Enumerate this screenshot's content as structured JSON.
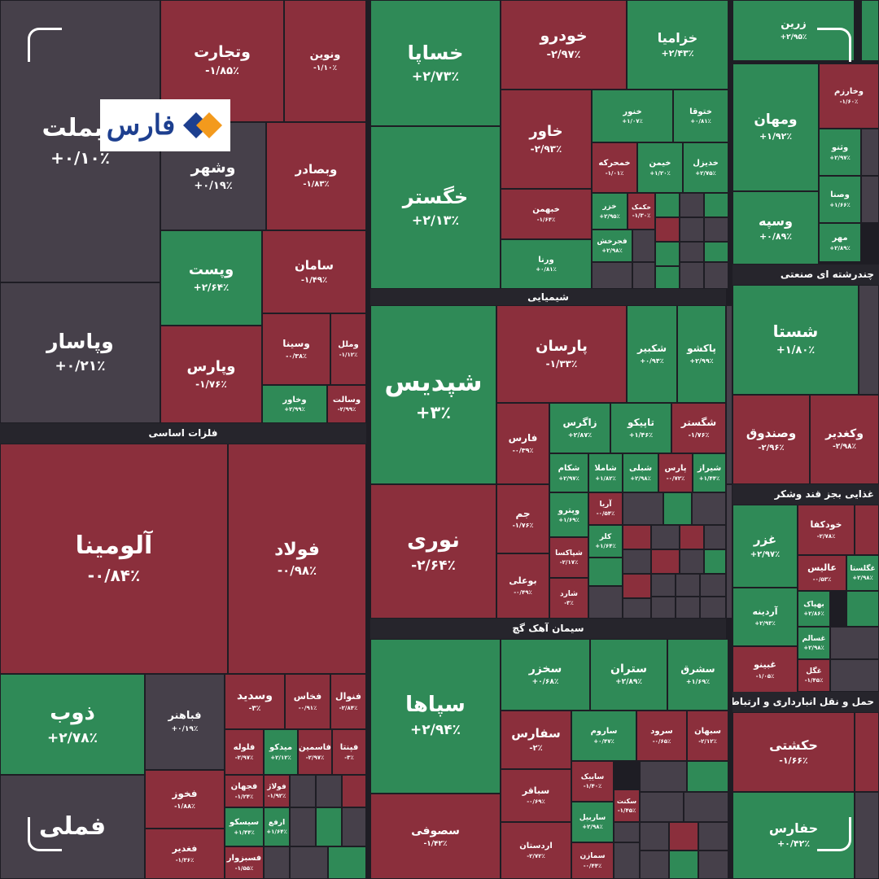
{
  "watermark": {
    "brand": "فارس"
  },
  "colors": {
    "positive": "#2f8a57",
    "negative": "#8b2f3c",
    "neutral": "#46404a",
    "background": "#1e1d24",
    "logo_orange": "#f39a1d",
    "logo_blue": "#1d3f8f"
  },
  "chart_data": {
    "type": "treemap",
    "value_meaning": "daily price change (%)",
    "sectors": [
      {
        "name": "فلزات اساسی",
        "tiles": [
          {
            "name": "وبملت",
            "change": 0.1,
            "label": "+۰/۱۰٪"
          },
          {
            "name": "وتجارت",
            "change": -1.85,
            "label": "-۱/۸۵٪"
          },
          {
            "name": "ونوین",
            "change": -1.1,
            "label": "-۱/۱۰٪"
          },
          {
            "name": "وشهر",
            "change": 0.19,
            "label": "+۰/۱۹٪"
          },
          {
            "name": "وبصادر",
            "change": -1.83,
            "label": "-۱/۸۳٪"
          },
          {
            "name": "وپست",
            "change": 2.64,
            "label": "+۲/۶۴٪"
          },
          {
            "name": "سامان",
            "change": -1.49,
            "label": "-۱/۴۹٪"
          },
          {
            "name": "وپاسار",
            "change": 0.21,
            "label": "+۰/۲۱٪"
          },
          {
            "name": "وپارس",
            "change": -1.76,
            "label": "-۱/۷۶٪"
          },
          {
            "name": "وسینا",
            "change": -0.38,
            "label": "-۰/۳۸٪"
          },
          {
            "name": "وملل",
            "change": -1.12,
            "label": "-۱/۱۲٪"
          },
          {
            "name": "وخاور",
            "change": 2.99,
            "label": "+۲/۹۹٪"
          },
          {
            "name": "وسالت",
            "change": -2.99,
            "label": "-۲/۹۹٪"
          }
        ]
      },
      {
        "name": "",
        "tiles": [
          {
            "name": "آلومینا",
            "change": -0.84,
            "label": "-۰/۸۴٪"
          },
          {
            "name": "فولاد",
            "change": -0.98,
            "label": "-۰/۹۸٪"
          },
          {
            "name": "ذوب",
            "change": 2.78,
            "label": "+۲/۷۸٪"
          },
          {
            "name": "فباهنر",
            "change": 0.19,
            "label": "+۰/۱۹٪"
          },
          {
            "name": "وسدید",
            "change": -3.0,
            "label": "-۳٪"
          },
          {
            "name": "فخاس",
            "change": -0.91,
            "label": "-۰/۹۱٪"
          },
          {
            "name": "فنوال",
            "change": -2.84,
            "label": "-۲/۸۴٪"
          },
          {
            "name": "فلوله",
            "change": -2.97,
            "label": "-۲/۹۷٪"
          },
          {
            "name": "میدکو",
            "change": 2.12,
            "label": "+۲/۱۲٪"
          },
          {
            "name": "فاسمین",
            "change": -2.97,
            "label": "-۲/۹۷٪"
          },
          {
            "name": "فپنتا",
            "change": -3.0,
            "label": "-۳٪"
          },
          {
            "name": "فخوز",
            "change": -1.88,
            "label": "-۱/۸۸٪"
          },
          {
            "name": "فجهان",
            "change": -1.24,
            "label": "-۱/۲۴٪"
          },
          {
            "name": "فولاژ",
            "change": -1.92,
            "label": "-۱/۹۲٪"
          },
          {
            "name": "سیسکو",
            "change": 1.44,
            "label": "+۱/۴۴٪"
          },
          {
            "name": "ارفع",
            "change": 1.64,
            "label": "+۱/۶۴٪"
          },
          {
            "name": "فملی",
            "change": 0,
            "label": ""
          },
          {
            "name": "فغدیر",
            "change": -1.36,
            "label": "-۱/۳۶٪"
          },
          {
            "name": "فسبزوار",
            "change": -1.55,
            "label": "-۱/۵۵٪"
          }
        ]
      },
      {
        "name": "شیمیایی",
        "tiles": [
          {
            "name": "خساپا",
            "change": 2.73,
            "label": "+۲/۷۳٪"
          },
          {
            "name": "خگستر",
            "change": 2.13,
            "label": "+۲/۱۳٪"
          },
          {
            "name": "خودرو",
            "change": -2.97,
            "label": "-۲/۹۷٪"
          },
          {
            "name": "خزامیا",
            "change": 2.43,
            "label": "+۲/۴۳٪"
          },
          {
            "name": "خاور",
            "change": -2.93,
            "label": "-۲/۹۳٪"
          },
          {
            "name": "خنور",
            "change": 1.07,
            "label": "+۱/۰۷٪"
          },
          {
            "name": "ختوقا",
            "change": 0.81,
            "label": "+۰/۸۱٪"
          },
          {
            "name": "خمحرکه",
            "change": -1.01,
            "label": "-۱/۰۱٪"
          },
          {
            "name": "خیمن",
            "change": 1.2,
            "label": "+۱/۲۰٪"
          },
          {
            "name": "خدیزل",
            "change": 2.75,
            "label": "+۲/۷۵٪"
          },
          {
            "name": "خبهمن",
            "change": -1.64,
            "label": "-۱/۶۴٪"
          },
          {
            "name": "خزر",
            "change": 2.95,
            "label": "+۲/۹۵٪"
          },
          {
            "name": "خکمک",
            "change": -1.3,
            "label": "-۱/۳۰٪"
          },
          {
            "name": "فجرخش",
            "change": 2.98,
            "label": "+۲/۹۸٪"
          },
          {
            "name": "ورنا",
            "change": 0.81,
            "label": "+۰/۸۱٪"
          }
        ]
      },
      {
        "name": "سیمان آهک گچ",
        "tiles": [
          {
            "name": "شپدیس",
            "change": 3.0,
            "label": "+۳٪"
          },
          {
            "name": "پارسان",
            "change": -1.33,
            "label": "-۱/۳۳٪"
          },
          {
            "name": "شکبیر",
            "change": 0.94,
            "label": "+۰/۹۴٪"
          },
          {
            "name": "پاکشو",
            "change": 2.99,
            "label": "+۲/۹۹٪"
          },
          {
            "name": "فارس",
            "change": -0.39,
            "label": "-۰/۳۹٪"
          },
          {
            "name": "زاگرس",
            "change": 2.87,
            "label": "+۲/۸۷٪"
          },
          {
            "name": "تاپیکو",
            "change": 1.46,
            "label": "+۱/۴۶٪"
          },
          {
            "name": "شگستر",
            "change": -1.76,
            "label": "-۱/۷۶٪"
          },
          {
            "name": "شکام",
            "change": 2.97,
            "label": "+۲/۹۷٪"
          },
          {
            "name": "شاملا",
            "change": 1.82,
            "label": "+۱/۸۲٪"
          },
          {
            "name": "شبلی",
            "change": 2.98,
            "label": "+۲/۹۸٪"
          },
          {
            "name": "پارس",
            "change": -0.72,
            "label": "-۰/۷۲٪"
          },
          {
            "name": "شیراز",
            "change": 1.44,
            "label": "+۱/۴۴٪"
          },
          {
            "name": "جم",
            "change": -1.76,
            "label": "-۱/۷۶٪"
          },
          {
            "name": "نوری",
            "change": -2.64,
            "label": "-۲/۶۴٪"
          },
          {
            "name": "وپترو",
            "change": 1.69,
            "label": "+۱/۶۹٪"
          },
          {
            "name": "آریا",
            "change": -0.54,
            "label": "-۰/۵۴٪"
          },
          {
            "name": "کلر",
            "change": 1.64,
            "label": "+۱/۶۴٪"
          },
          {
            "name": "شپاکسا",
            "change": -2.17,
            "label": "-۲/۱۷٪"
          },
          {
            "name": "بوعلی",
            "change": -0.49,
            "label": "-۰/۴۹٪"
          },
          {
            "name": "شارد",
            "change": -3.0,
            "label": "-۳٪"
          }
        ]
      },
      {
        "name": "",
        "tiles": [
          {
            "name": "سپاها",
            "change": 2.94,
            "label": "+۲/۹۴٪"
          },
          {
            "name": "سخزر",
            "change": 0.68,
            "label": "+۰/۶۸٪"
          },
          {
            "name": "ستران",
            "change": 2.89,
            "label": "+۲/۸۹٪"
          },
          {
            "name": "سشرق",
            "change": 1.69,
            "label": "+۱/۶۹٪"
          },
          {
            "name": "سفارس",
            "change": -2.0,
            "label": "-۲٪"
          },
          {
            "name": "ساروم",
            "change": 0.47,
            "label": "+۰/۴۷٪"
          },
          {
            "name": "سرود",
            "change": -0.65,
            "label": "-۰/۶۵٪"
          },
          {
            "name": "سبهان",
            "change": -2.12,
            "label": "-۲/۱۲٪"
          },
          {
            "name": "ساییک",
            "change": -1.4,
            "label": "-۱/۴۰٪"
          },
          {
            "name": "سباقر",
            "change": -0.69,
            "label": "-۰/۶۹٪"
          },
          {
            "name": "سکنت",
            "change": -1.45,
            "label": "-۱/۴۵٪"
          },
          {
            "name": "ساربیل",
            "change": 2.98,
            "label": "+۲/۹۸٪"
          },
          {
            "name": "سصوفی",
            "change": -1.42,
            "label": "-۱/۴۲٪"
          },
          {
            "name": "اردستان",
            "change": -2.72,
            "label": "-۲/۷۲٪"
          },
          {
            "name": "سمازن",
            "change": -0.44,
            "label": "-۰/۴۴٪"
          }
        ]
      },
      {
        "name": "چندرشته ای صنعتی",
        "tiles": [
          {
            "name": "زرین",
            "change": 2.95,
            "label": "+۲/۹۵٪"
          },
          {
            "name": "ومهان",
            "change": 1.92,
            "label": "+۱/۹۲٪"
          },
          {
            "name": "وخارزم",
            "change": -1.6,
            "label": "-۱/۶۰٪"
          },
          {
            "name": "وثنو",
            "change": 2.97,
            "label": "+۲/۹۷٪"
          },
          {
            "name": "وسپه",
            "change": 0.89,
            "label": "+۰/۸۹٪"
          },
          {
            "name": "وصنا",
            "change": 1.66,
            "label": "+۱/۶۶٪"
          },
          {
            "name": "مهر",
            "change": 2.89,
            "label": "+۲/۸۹٪"
          }
        ]
      },
      {
        "name": "غذایی بجز قند وشکر",
        "tiles": [
          {
            "name": "شستا",
            "change": 1.8,
            "label": "+۱/۸۰٪"
          },
          {
            "name": "وصندوق",
            "change": -2.96,
            "label": "-۲/۹۶٪"
          },
          {
            "name": "وکغدیر",
            "change": -2.98,
            "label": "-۲/۹۸٪"
          }
        ]
      },
      {
        "name": "حمل و نقل انبارداری و ارتباطات",
        "tiles": [
          {
            "name": "غزر",
            "change": 2.97,
            "label": "+۲/۹۷٪"
          },
          {
            "name": "خودکفا",
            "change": -2.78,
            "label": "-۲/۷۸٪"
          },
          {
            "name": "عالیس",
            "change": -0.53,
            "label": "-۰/۵۳٪"
          },
          {
            "name": "غگلستا",
            "change": 2.98,
            "label": "+۲/۹۸٪"
          },
          {
            "name": "آردینه",
            "change": 2.93,
            "label": "+۲/۹۳٪"
          },
          {
            "name": "بهپاک",
            "change": 2.86,
            "label": "+۲/۸۶٪"
          },
          {
            "name": "غسالم",
            "change": 2.98,
            "label": "+۲/۹۸٪"
          },
          {
            "name": "غبینو",
            "change": -1.05,
            "label": "-۱/۰۵٪"
          },
          {
            "name": "غگل",
            "change": -1.45,
            "label": "-۱/۴۵٪"
          }
        ]
      },
      {
        "name": "",
        "tiles": [
          {
            "name": "حکشتی",
            "change": -1.66,
            "label": "-۱/۶۶٪"
          },
          {
            "name": "حفارس",
            "change": 0.42,
            "label": "+۰/۴۲٪"
          }
        ]
      }
    ]
  }
}
